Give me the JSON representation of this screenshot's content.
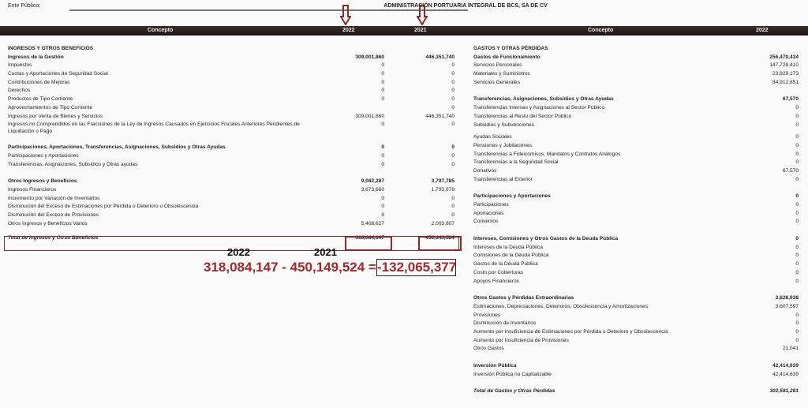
{
  "header": {
    "ente_label": "Ente Público:",
    "entity": "ADMINISTRACIÓN PORTUARIA INTEGRAL DE BCS, SA DE CV"
  },
  "columns": {
    "concept": "Concepto",
    "y2022": "2022",
    "y2021": "2021",
    "right_concept": "Concepto",
    "right_y2022": "2022"
  },
  "colors": {
    "accent": "#8b2a2a",
    "formula": "#a3282c",
    "header_bar": "#231a18"
  },
  "left_sections": [
    [
      {
        "label": "INGRESOS Y OTROS BENEFICIOS",
        "style": "b"
      },
      {
        "label": "Ingresos de la Gestión",
        "v2022": "309,001,860",
        "v2021": "446,351,740",
        "style": "b"
      },
      {
        "label": "Impuestos",
        "v2022": "0",
        "v2021": "0"
      },
      {
        "label": "Cuotas y Aportaciones de Seguridad Social",
        "v2022": "0",
        "v2021": "0"
      },
      {
        "label": "Contribuciones de Mejoras",
        "v2022": "0",
        "v2021": "0"
      },
      {
        "label": "Derechos",
        "v2022": "0",
        "v2021": "0"
      },
      {
        "label": "Productos de Tipo Corriente",
        "v2022": "0",
        "v2021": "0"
      },
      {
        "label": "Aprovechamientos de Tipo Corriente",
        "v2022": "",
        "v2021": "0"
      },
      {
        "label": "Ingresos por Venta de Bienes y Servicios",
        "v2022": "309,001,860",
        "v2021": "446,351,740"
      },
      {
        "label": "Ingresos no Comprendidos en las Fracciones de la Ley de Ingresos Causados en Ejercicios Fiscales Anteriores Pendientes de Liquidación o Pago",
        "v2022": "0",
        "v2021": "0",
        "style": "two"
      }
    ],
    [
      {
        "label": "Participaciones, Aportaciones, Transferencias, Asignaciones, Subsidios y Otras Ayudas",
        "v2022": "0",
        "v2021": "0",
        "style": "b"
      },
      {
        "label": "Participaciones y Aportaciones",
        "v2022": "0",
        "v2021": "0"
      },
      {
        "label": "Transferencias, Asignaciones, Subsidios y Otras ayudas",
        "v2022": "0",
        "v2021": "0"
      }
    ],
    [
      {
        "label": "Otros Ingresos y Beneficios",
        "v2022": "9,082,287",
        "v2021": "3,797,785",
        "style": "b"
      },
      {
        "label": "Ingresos Financieros",
        "v2022": "3,673,660",
        "v2021": "1,793,978"
      },
      {
        "label": "Incremento por Variación de Inventarios",
        "v2022": "0",
        "v2021": "0"
      },
      {
        "label": "Disminución del Exceso de Estimaciones por Pérdida o Deterioro u Obsolescencia",
        "v2022": "0",
        "v2021": "0"
      },
      {
        "label": "Disminución del Exceso de Provisiones",
        "v2022": "0",
        "v2021": "0"
      },
      {
        "label": "Otros Ingresos y Beneficios Varios",
        "v2022": "5,408,627",
        "v2021": "2,003,807"
      }
    ],
    [
      {
        "label": "Total de Ingresos y Otros Beneficios",
        "v2022": "318,084,147",
        "v2021": "450,149,524",
        "style": "i"
      }
    ]
  ],
  "right_sections": [
    [
      {
        "label": "GASTOS Y OTRAS PÉRDIDAS",
        "style": "b"
      },
      {
        "label": "Gastos de  Funcionamiento",
        "v2022": "256,470,434",
        "style": "b"
      },
      {
        "label": "Servicios Personales",
        "v2022": "147,728,410"
      },
      {
        "label": "Materiales y Suministros",
        "v2022": "23,829,173"
      },
      {
        "label": "Servicios Generales",
        "v2022": "84,912,851"
      }
    ],
    [
      {
        "label": "Transferencias, Asignaciones, Subsidios y Otras Ayudas",
        "v2022": "67,570",
        "style": "b"
      },
      {
        "label": "Transferencias Internas y Asignaciones al Sector Público",
        "v2022": "0"
      },
      {
        "label": "Transferencias al Resto del Sector Público",
        "v2022": "0"
      },
      {
        "label": "Subsidios y Subvenciones",
        "v2022": "0"
      }
    ],
    [
      {
        "label": "Ayudas Sociales",
        "v2022": "0"
      },
      {
        "label": "Pensiones y Jubilaciones",
        "v2022": "0"
      },
      {
        "label": "Transferencias a Fideicomisos, Mandatos y Contratos Análogos",
        "v2022": "0"
      },
      {
        "label": "Transferencias a la Seguridad Social",
        "v2022": "0"
      },
      {
        "label": "Donativos",
        "v2022": "67,570"
      },
      {
        "label": "Transferencias al Exterior",
        "v2022": "0"
      }
    ],
    [
      {
        "label": "Participaciones y Aportaciones",
        "v2022": "0",
        "style": "b"
      },
      {
        "label": "Participaciones",
        "v2022": "0"
      },
      {
        "label": "Aportaciones",
        "v2022": "0"
      },
      {
        "label": "Convenios",
        "v2022": "0"
      }
    ],
    [
      {
        "label": "Intereses, Comisiones y Otros Gastos de la Deuda Pública",
        "v2022": "0",
        "style": "b"
      },
      {
        "label": "Intereses de la Deuda Pública",
        "v2022": "0"
      },
      {
        "label": "Comisiones de la Deuda Pública",
        "v2022": "0"
      },
      {
        "label": "Gastos de la Deuda Pública",
        "v2022": "0"
      },
      {
        "label": "Costo por Coberturas",
        "v2022": "0"
      },
      {
        "label": "Apoyos Financieros",
        "v2022": "0"
      }
    ],
    [
      {
        "label": "Otros Gastos y Pérdidas Extraordinarias",
        "v2022": "3,628,638",
        "style": "b"
      },
      {
        "label": "Estimaciones, Depreciaciones, Deterioros, Obsolescencia y Amortizaciones",
        "v2022": "3,607,597"
      },
      {
        "label": "Provisiones",
        "v2022": "0"
      },
      {
        "label": "Disminución de Inventarios",
        "v2022": "0"
      },
      {
        "label": "Aumento por Insuficiencia de Estimaciones por Pérdida o Deterioro y Obsolescencia",
        "v2022": "0"
      },
      {
        "label": "Aumento por Insuficiencia de Provisiones",
        "v2022": "0"
      },
      {
        "label": "Otros Gastos",
        "v2022": "21,041"
      }
    ],
    [
      {
        "label": "Inversión Pública",
        "v2022": "42,414,639",
        "style": "b"
      },
      {
        "label": "Inversión Pública no Capitalizable",
        "v2022": "42,414,639"
      }
    ],
    [
      {
        "label": "Total de Gastos y Otras Pérdidas",
        "v2022": "302,581,281",
        "style": "i"
      }
    ]
  ],
  "annotation": {
    "year1": "2022",
    "year2": "2021",
    "formula": "318,084,147 - 450,149,524 =",
    "result": "-132,065,377"
  }
}
